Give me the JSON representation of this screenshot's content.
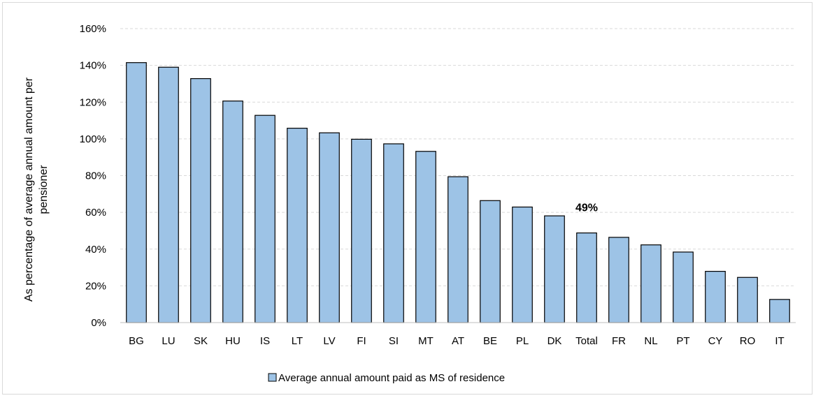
{
  "chart_data": {
    "type": "bar",
    "title": "",
    "xlabel": "",
    "ylabel": "As percentage of average annual amount per pensioner",
    "ylim": [
      0,
      160
    ],
    "y_tick_step": 20,
    "y_tick_suffix": "%",
    "grid": true,
    "legend_position": "bottom",
    "categories": [
      "BG",
      "LU",
      "SK",
      "HU",
      "IS",
      "LT",
      "LV",
      "FI",
      "SI",
      "MT",
      "AT",
      "BE",
      "PL",
      "DK",
      "Total",
      "FR",
      "NL",
      "PT",
      "CY",
      "RO",
      "IT"
    ],
    "series": [
      {
        "name": "Average annual amount paid as MS of residence",
        "color": "#9dc3e6",
        "values": [
          141.5,
          139,
          132.8,
          120.6,
          112.8,
          105.8,
          103.3,
          99.8,
          97.3,
          93.2,
          79.4,
          66.4,
          62.9,
          58.1,
          48.8,
          46.4,
          42.3,
          38.4,
          27.9,
          24.6,
          12.6
        ]
      }
    ],
    "data_labels": [
      {
        "category": "Total",
        "text": "49%"
      }
    ]
  },
  "colors": {
    "bar_fill": "#9dc3e6",
    "bar_stroke": "#000000",
    "gridline": "#d9d9d9",
    "axis_line": "#bfbfbf"
  }
}
